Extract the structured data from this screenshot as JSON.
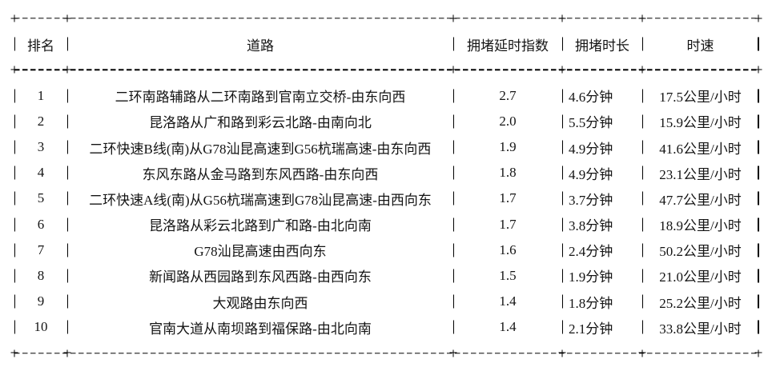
{
  "table": {
    "headers": {
      "rank": "排名",
      "road": "道路",
      "index": "拥堵延时指数",
      "duration": "拥堵时长",
      "speed": "时速"
    },
    "rows": [
      {
        "rank": "1",
        "road": "二环南路辅路从二环南路到官南立交桥-由东向西",
        "index": "2.7",
        "duration": "4.6分钟",
        "speed": "17.5公里/小时"
      },
      {
        "rank": "2",
        "road": "昆洛路从广和路到彩云北路-由南向北",
        "index": "2.0",
        "duration": "5.5分钟",
        "speed": "15.9公里/小时"
      },
      {
        "rank": "3",
        "road": "二环快速B线(南)从G78汕昆高速到G56杭瑞高速-由东向西",
        "index": "1.9",
        "duration": "4.9分钟",
        "speed": "41.6公里/小时"
      },
      {
        "rank": "4",
        "road": "东风东路从金马路到东风西路-由东向西",
        "index": "1.8",
        "duration": "4.9分钟",
        "speed": "23.1公里/小时"
      },
      {
        "rank": "5",
        "road": "二环快速A线(南)从G56杭瑞高速到G78汕昆高速-由西向东",
        "index": "1.7",
        "duration": "3.7分钟",
        "speed": "47.7公里/小时"
      },
      {
        "rank": "6",
        "road": "昆洛路从彩云北路到广和路-由北向南",
        "index": "1.7",
        "duration": "3.8分钟",
        "speed": "18.9公里/小时"
      },
      {
        "rank": "7",
        "road": "G78汕昆高速由西向东",
        "index": "1.6",
        "duration": "2.4分钟",
        "speed": "50.2公里/小时"
      },
      {
        "rank": "8",
        "road": "新闻路从西园路到东风西路-由西向东",
        "index": "1.5",
        "duration": "1.9分钟",
        "speed": "21.0公里/小时"
      },
      {
        "rank": "9",
        "road": "大观路由东向西",
        "index": "1.4",
        "duration": "1.8分钟",
        "speed": "25.2公里/小时"
      },
      {
        "rank": "10",
        "road": "官南大道从南坝路到福保路-由北向南",
        "index": "1.4",
        "duration": "2.1分钟",
        "speed": "33.8公里/小时"
      }
    ]
  }
}
